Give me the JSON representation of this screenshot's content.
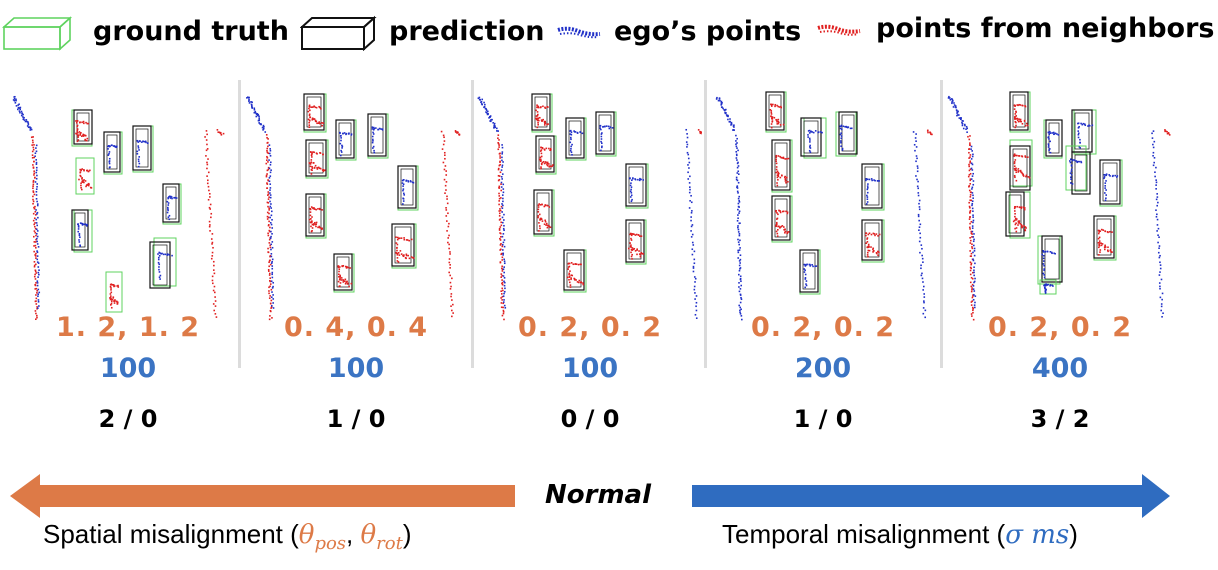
{
  "legend": {
    "ground_truth": "ground truth",
    "prediction": "prediction",
    "ego_points": "ego’s points",
    "neighbor_points": "points from neighbors"
  },
  "colors": {
    "ground_truth": "#5fd35f",
    "prediction": "#111111",
    "ego_points": "#2030c8",
    "neighbor_points": "#e02020",
    "spatial": "#dd7a47",
    "temporal": "#3b74c3"
  },
  "panels": [
    {
      "spatial": "1. 2, 1. 2",
      "temporal": "100",
      "counts": "2 / 0"
    },
    {
      "spatial": "0. 4, 0. 4",
      "temporal": "100",
      "counts": "1 / 0"
    },
    {
      "spatial": "0. 2, 0. 2",
      "temporal": "100",
      "counts": "0 / 0"
    },
    {
      "spatial": "0. 2, 0. 2",
      "temporal": "200",
      "counts": "1 / 0"
    },
    {
      "spatial": "0. 2, 0. 2",
      "temporal": "400",
      "counts": "3 / 2"
    }
  ],
  "center_label": "Normal",
  "spatial_axis": {
    "prefix": "Spatial misalignment (",
    "symbol_a": "θ",
    "sub_a": "pos",
    "sep": ", ",
    "symbol_b": "θ",
    "sub_b": "rot",
    "suffix": ")"
  },
  "temporal_axis": {
    "prefix": "Temporal misalignment (",
    "symbol": "σ ms",
    "suffix": ")"
  }
}
